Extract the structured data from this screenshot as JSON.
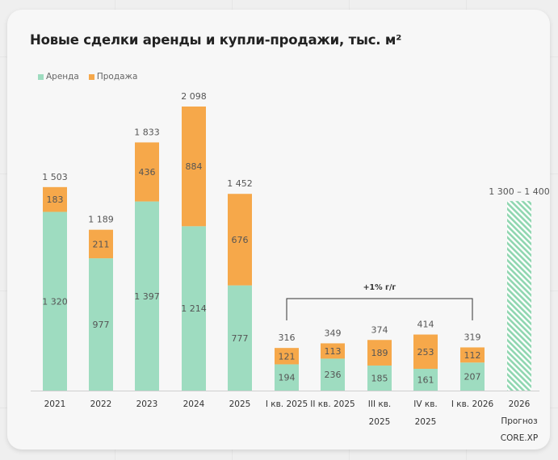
{
  "title": "Новые сделки аренды и купли-продажи, тыс. м²",
  "colors": {
    "rent": "#9edcc0",
    "sale": "#f6a84a",
    "forecast": "#8fd6b0"
  },
  "chart_data": {
    "type": "bar",
    "stacked": true,
    "title": "Новые сделки аренды и купли-продажи, тыс. м²",
    "legend": {
      "placement": "top-left",
      "entries": [
        "Аренда",
        "Продажа"
      ]
    },
    "series": [
      {
        "name": "Аренда",
        "values": [
          1320,
          977,
          1397,
          1214,
          777,
          194,
          236,
          185,
          161,
          207
        ]
      },
      {
        "name": "Продажа",
        "values": [
          183,
          211,
          436,
          884,
          676,
          121,
          113,
          189,
          253,
          112
        ]
      }
    ],
    "categories": [
      {
        "label": "2021",
        "rent": 1320,
        "sale": 183,
        "total": 1503,
        "rent_label": "1 320",
        "sale_label": "183",
        "total_label": "1 503"
      },
      {
        "label": "2022",
        "rent": 977,
        "sale": 211,
        "total": 1189,
        "rent_label": "977",
        "sale_label": "211",
        "total_label": "1 189"
      },
      {
        "label": "2023",
        "rent": 1397,
        "sale": 436,
        "total": 1833,
        "rent_label": "1 397",
        "sale_label": "436",
        "total_label": "1 833"
      },
      {
        "label": "2024",
        "rent": 1214,
        "sale": 884,
        "total": 2098,
        "rent_label": "1 214",
        "sale_label": "884",
        "total_label": "2 098"
      },
      {
        "label": "2025",
        "rent": 777,
        "sale": 676,
        "total": 1452,
        "rent_label": "777",
        "sale_label": "676",
        "total_label": "1 452"
      },
      {
        "label": "I кв. 2025",
        "rent": 194,
        "sale": 121,
        "total": 316,
        "rent_label": "194",
        "sale_label": "121",
        "total_label": "316"
      },
      {
        "label": "II кв. 2025",
        "rent": 236,
        "sale": 113,
        "total": 349,
        "rent_label": "236",
        "sale_label": "113",
        "total_label": "349"
      },
      {
        "label": "III кв.\n2025",
        "rent": 185,
        "sale": 189,
        "total": 374,
        "rent_label": "185",
        "sale_label": "189",
        "total_label": "374"
      },
      {
        "label": "IV кв.\n2025",
        "rent": 161,
        "sale": 253,
        "total": 414,
        "rent_label": "161",
        "sale_label": "253",
        "total_label": "414"
      },
      {
        "label": "I кв. 2026",
        "rent": 207,
        "sale": 112,
        "total": 319,
        "rent_label": "207",
        "sale_label": "112",
        "total_label": "319"
      }
    ],
    "forecast": {
      "label": "2026\nПрогноз\nCORE.XP",
      "range": [
        1300,
        1400
      ],
      "value_label": "1 300 – 1 400"
    },
    "annotation": {
      "text": "+1% г/г",
      "from_category": 5,
      "to_category": 9
    },
    "ylim": [
      0,
      2098
    ],
    "grid": false
  }
}
